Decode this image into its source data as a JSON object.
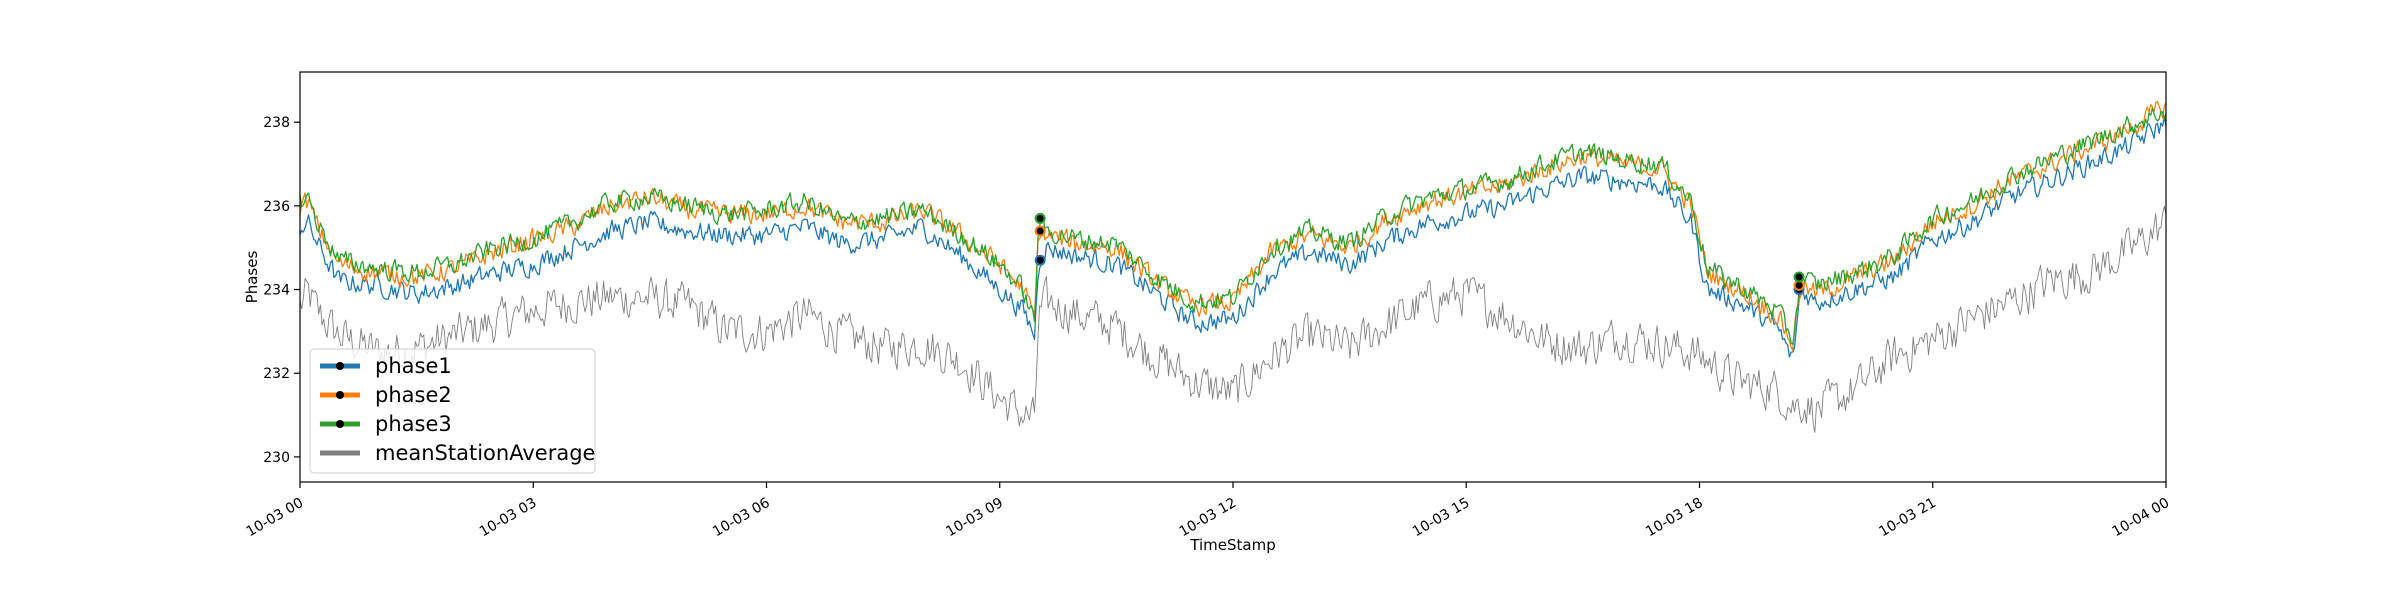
{
  "chart_data": {
    "type": "line",
    "xlabel": "TimeStamp",
    "ylabel": "Phases",
    "x_ticks": [
      "10-03 00",
      "10-03 03",
      "10-03 06",
      "10-03 09",
      "10-03 12",
      "10-03 15",
      "10-03 18",
      "10-03 21",
      "10-04 00"
    ],
    "y_ticks": [
      "230",
      "232",
      "234",
      "236",
      "238"
    ],
    "xlim_hours": [
      0,
      24
    ],
    "ylim": [
      229.4,
      239.2
    ],
    "grid": false,
    "legend_placement": "lower-left",
    "x_hours": [
      0,
      0.1,
      0.25,
      0.5,
      1,
      1.5,
      2,
      2.5,
      3,
      3.5,
      4,
      4.5,
      5,
      5.5,
      6,
      6.5,
      7,
      7.5,
      8,
      8.5,
      9,
      9.3,
      9.45,
      9.5,
      9.6,
      10,
      10.5,
      11,
      11.5,
      12,
      12.5,
      13,
      13.5,
      14,
      14.5,
      15,
      15.5,
      16,
      16.5,
      17,
      17.5,
      17.9,
      18.1,
      18.5,
      19,
      19.2,
      19.3,
      19.5,
      20,
      20.5,
      21,
      21.5,
      22,
      22.5,
      23,
      23.5,
      24
    ],
    "series": [
      {
        "name": "phase1",
        "color": "#1f77b4",
        "values": [
          235.5,
          235.6,
          235.0,
          234.2,
          234.1,
          233.9,
          234.1,
          234.4,
          234.6,
          235.0,
          235.4,
          235.6,
          235.4,
          235.3,
          235.3,
          235.5,
          235.1,
          235.2,
          235.5,
          234.8,
          234.0,
          233.5,
          232.9,
          234.7,
          235.0,
          234.8,
          234.6,
          233.9,
          233.2,
          233.3,
          234.4,
          234.9,
          234.6,
          235.2,
          235.6,
          235.8,
          236.0,
          236.4,
          236.7,
          236.6,
          236.5,
          235.6,
          234.0,
          233.7,
          233.1,
          232.3,
          234.0,
          233.7,
          234.0,
          234.3,
          235.2,
          235.6,
          236.2,
          236.6,
          237.0,
          237.4,
          238.0
        ]
      },
      {
        "name": "phase2",
        "color": "#ff7f0e",
        "values": [
          236.0,
          236.1,
          235.4,
          234.6,
          234.4,
          234.3,
          234.5,
          234.9,
          235.2,
          235.5,
          236.0,
          236.2,
          235.9,
          235.8,
          235.8,
          236.0,
          235.6,
          235.6,
          235.9,
          235.3,
          234.6,
          234.0,
          233.3,
          235.4,
          235.3,
          235.1,
          235.0,
          234.2,
          233.6,
          233.7,
          234.9,
          235.3,
          235.0,
          235.7,
          236.1,
          236.3,
          236.5,
          236.9,
          237.2,
          237.0,
          236.9,
          236.0,
          234.4,
          234.0,
          233.4,
          232.7,
          234.1,
          233.9,
          234.3,
          234.7,
          235.6,
          236.0,
          236.6,
          237.0,
          237.4,
          237.8,
          238.4
        ]
      },
      {
        "name": "phase3",
        "color": "#2ca02c",
        "values": [
          236.1,
          236.2,
          235.5,
          234.7,
          234.5,
          234.4,
          234.6,
          235.0,
          235.2,
          235.6,
          236.1,
          236.2,
          236.0,
          235.8,
          235.9,
          236.1,
          235.6,
          235.7,
          235.9,
          235.3,
          234.6,
          234.0,
          233.2,
          235.7,
          235.4,
          235.2,
          235.1,
          234.3,
          233.7,
          233.8,
          235.0,
          235.4,
          235.1,
          235.8,
          236.2,
          236.4,
          236.6,
          237.0,
          237.3,
          237.1,
          237.0,
          236.1,
          234.5,
          234.1,
          233.5,
          232.8,
          234.3,
          234.1,
          234.4,
          234.8,
          235.7,
          236.1,
          236.7,
          237.1,
          237.5,
          237.9,
          238.3
        ]
      },
      {
        "name": "meanStationAverage",
        "color": "#808080",
        "values": [
          233.6,
          233.9,
          233.4,
          232.9,
          232.5,
          232.6,
          232.9,
          233.2,
          233.5,
          233.7,
          233.8,
          233.8,
          233.6,
          233.0,
          233.0,
          233.4,
          232.9,
          232.6,
          232.7,
          232.3,
          231.4,
          231.0,
          230.9,
          233.3,
          233.7,
          233.4,
          233.1,
          232.4,
          231.8,
          231.5,
          232.4,
          232.9,
          232.6,
          233.2,
          233.7,
          233.9,
          233.4,
          232.8,
          232.6,
          232.9,
          232.7,
          232.5,
          232.3,
          231.8,
          231.6,
          231.2,
          231.3,
          231.1,
          231.6,
          232.4,
          232.8,
          233.3,
          233.7,
          234.2,
          234.4,
          234.9,
          235.6
        ]
      }
    ],
    "markers": [
      {
        "x_hour": 9.52,
        "series": "phase1",
        "value": 234.7
      },
      {
        "x_hour": 9.52,
        "series": "phase2",
        "value": 235.4
      },
      {
        "x_hour": 9.52,
        "series": "phase3",
        "value": 235.7
      },
      {
        "x_hour": 19.28,
        "series": "phase1",
        "value": 234.0
      },
      {
        "x_hour": 19.28,
        "series": "phase2",
        "value": 234.1
      },
      {
        "x_hour": 19.28,
        "series": "phase3",
        "value": 234.3
      }
    ]
  }
}
